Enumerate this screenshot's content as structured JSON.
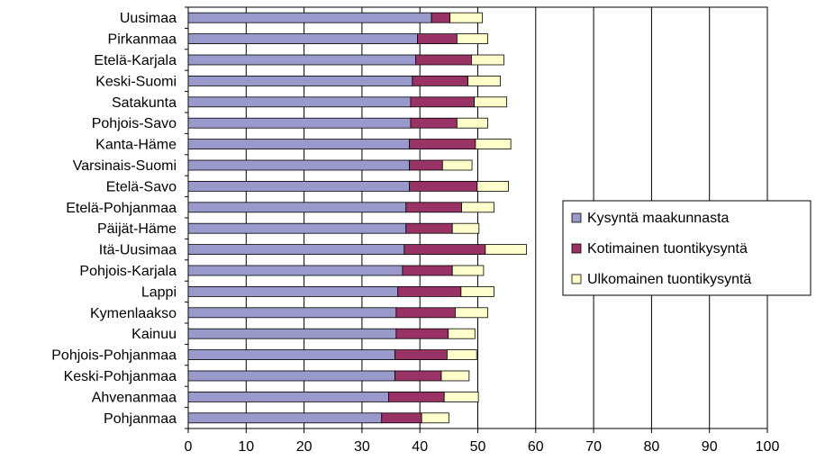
{
  "chart_data": {
    "type": "bar",
    "orientation": "horizontal",
    "stacked": true,
    "categories": [
      "Uusimaa",
      "Pirkanmaa",
      "Etelä-Karjala",
      "Keski-Suomi",
      "Satakunta",
      "Pohjois-Savo",
      "Kanta-Häme",
      "Varsinais-Suomi",
      "Etelä-Savo",
      "Etelä-Pohjanmaa",
      "Päijät-Häme",
      "Itä-Uusimaa",
      "Pohjois-Karjala",
      "Lappi",
      "Kymenlaakso",
      "Kainuu",
      "Pohjois-Pohjanmaa",
      "Keski-Pohjanmaa",
      "Ahvenanmaa",
      "Pohjanmaa"
    ],
    "series": [
      {
        "name": "Kysyntä maakunnasta",
        "color": "#9999cc",
        "values": [
          42.0,
          39.6,
          39.3,
          38.7,
          38.4,
          38.4,
          38.2,
          38.2,
          38.2,
          37.6,
          37.6,
          37.3,
          37.0,
          36.2,
          35.9,
          35.9,
          35.7,
          35.7,
          34.6,
          33.4
        ]
      },
      {
        "name": "Kotimainen tuontikysyntä",
        "color": "#993366",
        "values": [
          3.2,
          6.8,
          9.6,
          9.6,
          11.0,
          8.0,
          11.4,
          5.7,
          11.7,
          9.6,
          8.0,
          14.0,
          8.6,
          10.9,
          10.2,
          9.0,
          9.0,
          8.0,
          9.6,
          6.9
        ]
      },
      {
        "name": "Ulkomainen tuontikysyntä",
        "color": "#ffffcc",
        "values": [
          5.6,
          5.3,
          5.6,
          5.6,
          5.6,
          5.3,
          6.1,
          5.1,
          5.4,
          5.6,
          4.6,
          7.1,
          5.4,
          5.7,
          5.6,
          4.6,
          5.1,
          4.8,
          5.9,
          4.7
        ]
      }
    ],
    "xlim": [
      0,
      100
    ],
    "xticks": [
      "0",
      "10",
      "20",
      "30",
      "40",
      "50",
      "60",
      "70",
      "80",
      "90",
      "100"
    ],
    "grid": "vertical gridlines",
    "legend_position": "right"
  }
}
